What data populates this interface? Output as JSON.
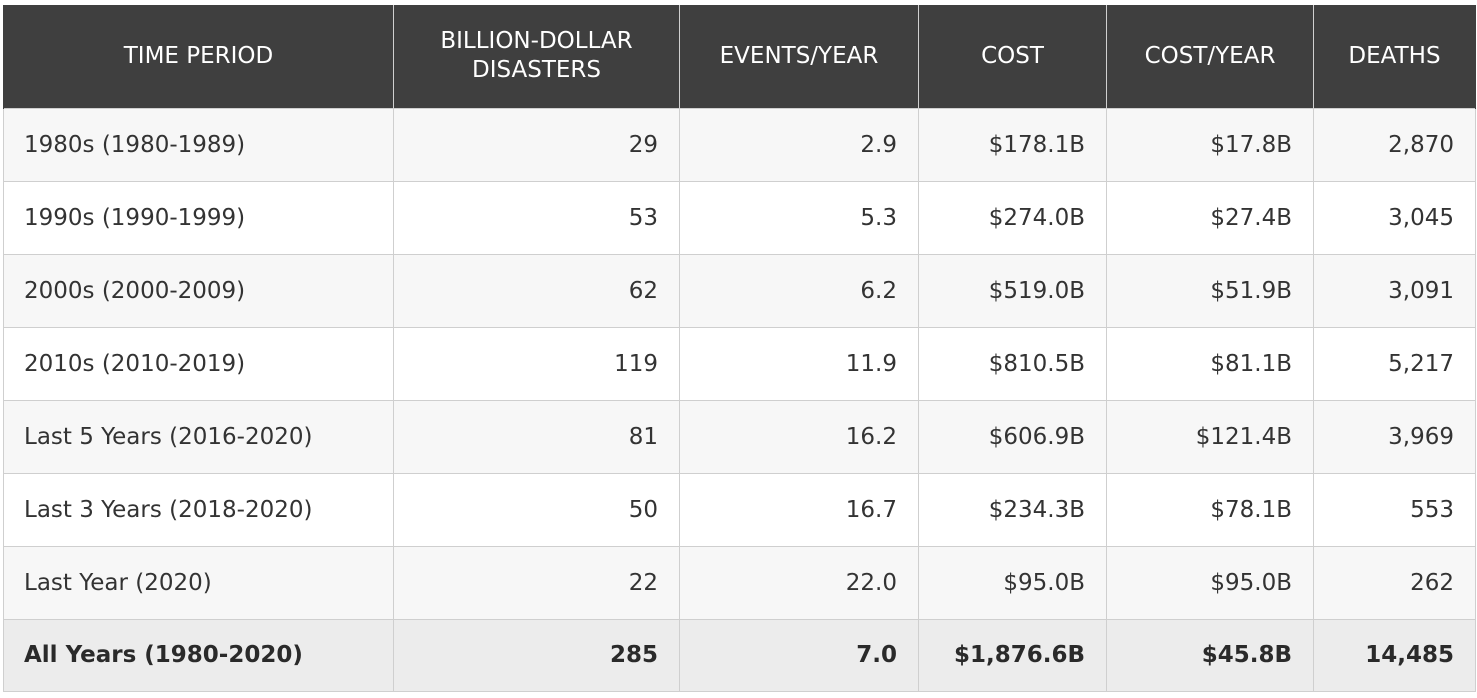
{
  "chart_data": {
    "type": "table",
    "columns": [
      "TIME PERIOD",
      "BILLION-DOLLAR DISASTERS",
      "EVENTS/YEAR",
      "COST",
      "COST/YEAR",
      "DEATHS"
    ],
    "rows": [
      [
        "1980s (1980-1989)",
        "29",
        "2.9",
        "$178.1B",
        "$17.8B",
        "2,870"
      ],
      [
        "1990s (1990-1999)",
        "53",
        "5.3",
        "$274.0B",
        "$27.4B",
        "3,045"
      ],
      [
        "2000s (2000-2009)",
        "62",
        "6.2",
        "$519.0B",
        "$51.9B",
        "3,091"
      ],
      [
        "2010s (2010-2019)",
        "119",
        "11.9",
        "$810.5B",
        "$81.1B",
        "5,217"
      ],
      [
        "Last 5 Years (2016-2020)",
        "81",
        "16.2",
        "$606.9B",
        "$121.4B",
        "3,969"
      ],
      [
        "Last 3 Years (2018-2020)",
        "50",
        "16.7",
        "$234.3B",
        "$78.1B",
        "553"
      ],
      [
        "Last Year (2020)",
        "22",
        "22.0",
        "$95.0B",
        "$95.0B",
        "262"
      ]
    ],
    "total_row": [
      "All Years (1980-2020)",
      "285",
      "7.0",
      "$1,876.6B",
      "$45.8B",
      "14,485"
    ]
  }
}
